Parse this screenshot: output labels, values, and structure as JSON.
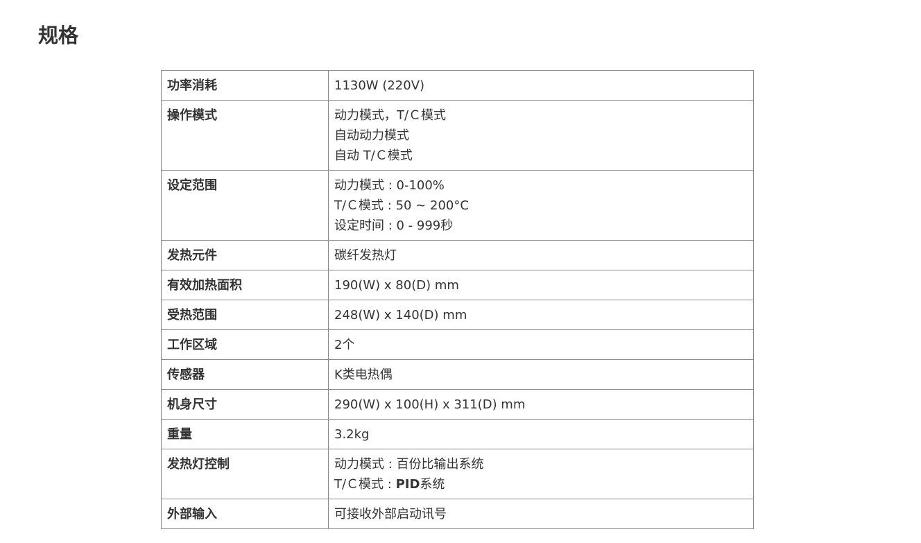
{
  "title": "规格",
  "specs": [
    {
      "label": "功率消耗",
      "lines": [
        [
          {
            "text": "1130W (220V)"
          }
        ]
      ]
    },
    {
      "label": "操作模式",
      "lines": [
        [
          {
            "text": "动力模式，T/Ｃ模式"
          }
        ],
        [
          {
            "text": "自动动力模式"
          }
        ],
        [
          {
            "text": "自动 T/Ｃ模式"
          }
        ]
      ]
    },
    {
      "label": "设定范围",
      "lines": [
        [
          {
            "text": "动力模式 : 0-100%"
          }
        ],
        [
          {
            "text": "T/Ｃ模式 : 50 ~ 200°C"
          }
        ],
        [
          {
            "text": "设定时间 : 0 - 999秒"
          }
        ]
      ]
    },
    {
      "label": "发热元件",
      "lines": [
        [
          {
            "text": "碳纤发热灯"
          }
        ]
      ]
    },
    {
      "label": "有效加热面积",
      "lines": [
        [
          {
            "text": "190(W) x 80(D) mm"
          }
        ]
      ]
    },
    {
      "label": "受热范围",
      "lines": [
        [
          {
            "text": "248(W) x 140(D) mm"
          }
        ]
      ]
    },
    {
      "label": "工作区域",
      "lines": [
        [
          {
            "text": "2个"
          }
        ]
      ]
    },
    {
      "label": "传感器",
      "lines": [
        [
          {
            "text": "K类电热偶"
          }
        ]
      ]
    },
    {
      "label": "机身尺寸",
      "lines": [
        [
          {
            "text": "290(W) x 100(H) x 311(D) mm"
          }
        ]
      ]
    },
    {
      "label": "重量",
      "lines": [
        [
          {
            "text": "3.2kg"
          }
        ]
      ]
    },
    {
      "label": "发热灯控制",
      "lines": [
        [
          {
            "text": "动力模式 : 百份比输出系统"
          }
        ],
        [
          {
            "text": "T/Ｃ模式 : "
          },
          {
            "text": "PID",
            "bold": true
          },
          {
            "text": "系统"
          }
        ]
      ]
    },
    {
      "label": "外部输入",
      "lines": [
        [
          {
            "text": "可接收外部启动讯号"
          }
        ]
      ]
    }
  ]
}
